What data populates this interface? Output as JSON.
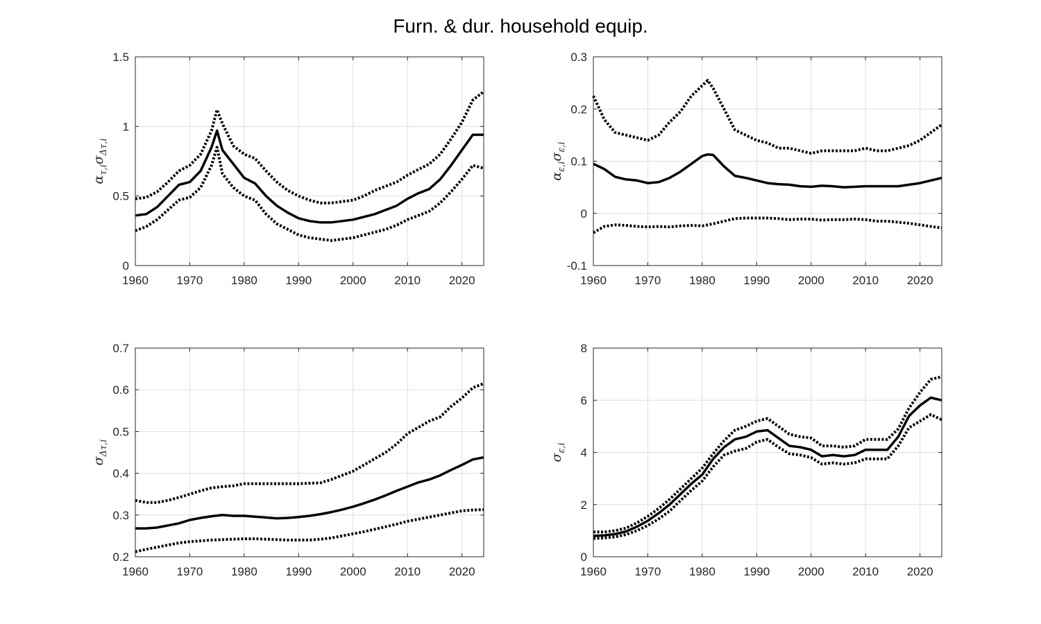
{
  "figure": {
    "title": "Furn. & dur. household equip."
  },
  "chart_data": [
    {
      "type": "line",
      "ylabel": {
        "base": "α",
        "base_sub": "τ,i",
        "mid": "σ",
        "mid_sub": "Δτ,i"
      },
      "xlim": [
        1960,
        2024
      ],
      "ylim": [
        0,
        1.5
      ],
      "xticks": [
        1960,
        1970,
        1980,
        1990,
        2000,
        2010,
        2020
      ],
      "yticks": [
        0,
        0.5,
        1,
        1.5
      ],
      "ytick_labels": [
        "0",
        "0.5",
        "1",
        "1.5"
      ],
      "grid": true,
      "series": [
        {
          "role": "upper",
          "style": "dotted",
          "x": [
            1960,
            1962,
            1964,
            1966,
            1968,
            1970,
            1972,
            1974,
            1975,
            1976,
            1978,
            1980,
            1982,
            1984,
            1986,
            1988,
            1990,
            1992,
            1994,
            1996,
            1998,
            2000,
            2002,
            2004,
            2006,
            2008,
            2010,
            2012,
            2014,
            2016,
            2018,
            2020,
            2022,
            2024
          ],
          "y": [
            0.48,
            0.49,
            0.53,
            0.6,
            0.68,
            0.72,
            0.8,
            0.97,
            1.12,
            1.02,
            0.86,
            0.8,
            0.77,
            0.68,
            0.6,
            0.54,
            0.5,
            0.47,
            0.45,
            0.45,
            0.46,
            0.47,
            0.5,
            0.54,
            0.57,
            0.6,
            0.65,
            0.69,
            0.73,
            0.8,
            0.91,
            1.03,
            1.19,
            1.25
          ]
        },
        {
          "role": "median",
          "style": "solid",
          "x": [
            1960,
            1962,
            1964,
            1966,
            1968,
            1970,
            1972,
            1974,
            1975,
            1976,
            1978,
            1980,
            1982,
            1984,
            1986,
            1988,
            1990,
            1992,
            1994,
            1996,
            1998,
            2000,
            2002,
            2004,
            2006,
            2008,
            2010,
            2012,
            2014,
            2016,
            2018,
            2020,
            2022,
            2024
          ],
          "y": [
            0.36,
            0.37,
            0.42,
            0.5,
            0.58,
            0.6,
            0.68,
            0.85,
            0.97,
            0.83,
            0.73,
            0.63,
            0.59,
            0.5,
            0.43,
            0.38,
            0.34,
            0.32,
            0.31,
            0.31,
            0.32,
            0.33,
            0.35,
            0.37,
            0.4,
            0.43,
            0.48,
            0.52,
            0.55,
            0.62,
            0.72,
            0.83,
            0.94,
            0.94
          ]
        },
        {
          "role": "lower",
          "style": "dotted",
          "x": [
            1960,
            1962,
            1964,
            1966,
            1968,
            1970,
            1972,
            1974,
            1975,
            1976,
            1978,
            1980,
            1982,
            1984,
            1986,
            1988,
            1990,
            1992,
            1994,
            1996,
            1998,
            2000,
            2002,
            2004,
            2006,
            2008,
            2010,
            2012,
            2014,
            2016,
            2018,
            2020,
            2022,
            2024
          ],
          "y": [
            0.25,
            0.28,
            0.33,
            0.4,
            0.47,
            0.49,
            0.56,
            0.72,
            0.85,
            0.66,
            0.56,
            0.5,
            0.47,
            0.37,
            0.3,
            0.26,
            0.22,
            0.2,
            0.19,
            0.18,
            0.19,
            0.2,
            0.22,
            0.24,
            0.26,
            0.29,
            0.33,
            0.36,
            0.39,
            0.45,
            0.53,
            0.62,
            0.72,
            0.7
          ]
        }
      ]
    },
    {
      "type": "line",
      "ylabel": {
        "base": "α",
        "base_sub": "ε,i",
        "mid": "σ",
        "mid_sub": "ε,i"
      },
      "xlim": [
        1960,
        2024
      ],
      "ylim": [
        -0.1,
        0.3
      ],
      "xticks": [
        1960,
        1970,
        1980,
        1990,
        2000,
        2010,
        2020
      ],
      "yticks": [
        -0.1,
        0,
        0.1,
        0.2,
        0.3
      ],
      "ytick_labels": [
        "-0.1",
        "0",
        "0.1",
        "0.2",
        "0.3"
      ],
      "grid": true,
      "series": [
        {
          "role": "upper",
          "style": "dotted",
          "x": [
            1960,
            1962,
            1964,
            1966,
            1968,
            1970,
            1972,
            1974,
            1976,
            1978,
            1980,
            1981,
            1982,
            1984,
            1986,
            1988,
            1990,
            1992,
            1994,
            1996,
            1998,
            2000,
            2002,
            2004,
            2006,
            2008,
            2010,
            2012,
            2014,
            2016,
            2018,
            2020,
            2022,
            2024
          ],
          "y": [
            0.225,
            0.18,
            0.155,
            0.15,
            0.145,
            0.14,
            0.15,
            0.175,
            0.195,
            0.225,
            0.245,
            0.255,
            0.24,
            0.2,
            0.16,
            0.15,
            0.14,
            0.135,
            0.125,
            0.125,
            0.12,
            0.115,
            0.12,
            0.12,
            0.12,
            0.12,
            0.125,
            0.12,
            0.12,
            0.125,
            0.13,
            0.14,
            0.155,
            0.17
          ]
        },
        {
          "role": "median",
          "style": "solid",
          "x": [
            1960,
            1962,
            1964,
            1966,
            1968,
            1970,
            1972,
            1974,
            1976,
            1978,
            1980,
            1981,
            1982,
            1984,
            1986,
            1988,
            1990,
            1992,
            1994,
            1996,
            1998,
            2000,
            2002,
            2004,
            2006,
            2008,
            2010,
            2012,
            2014,
            2016,
            2018,
            2020,
            2022,
            2024
          ],
          "y": [
            0.095,
            0.085,
            0.07,
            0.065,
            0.063,
            0.058,
            0.06,
            0.068,
            0.08,
            0.095,
            0.11,
            0.113,
            0.112,
            0.09,
            0.072,
            0.068,
            0.063,
            0.058,
            0.056,
            0.055,
            0.052,
            0.051,
            0.053,
            0.052,
            0.05,
            0.051,
            0.052,
            0.052,
            0.052,
            0.052,
            0.055,
            0.058,
            0.063,
            0.068
          ]
        },
        {
          "role": "lower",
          "style": "dotted",
          "x": [
            1960,
            1962,
            1964,
            1966,
            1968,
            1970,
            1972,
            1974,
            1976,
            1978,
            1980,
            1982,
            1984,
            1986,
            1988,
            1990,
            1992,
            1994,
            1996,
            1998,
            2000,
            2002,
            2004,
            2006,
            2008,
            2010,
            2012,
            2014,
            2016,
            2018,
            2020,
            2022,
            2024
          ],
          "y": [
            -0.037,
            -0.025,
            -0.022,
            -0.023,
            -0.025,
            -0.026,
            -0.025,
            -0.026,
            -0.024,
            -0.023,
            -0.024,
            -0.02,
            -0.015,
            -0.01,
            -0.009,
            -0.009,
            -0.009,
            -0.01,
            -0.012,
            -0.011,
            -0.011,
            -0.013,
            -0.012,
            -0.012,
            -0.011,
            -0.012,
            -0.015,
            -0.015,
            -0.017,
            -0.019,
            -0.022,
            -0.025,
            -0.028
          ]
        }
      ]
    },
    {
      "type": "line",
      "ylabel": {
        "base": "σ",
        "base_sub": "Δτ,i",
        "mid": "",
        "mid_sub": ""
      },
      "xlim": [
        1960,
        2024
      ],
      "ylim": [
        0.2,
        0.7
      ],
      "xticks": [
        1960,
        1970,
        1980,
        1990,
        2000,
        2010,
        2020
      ],
      "yticks": [
        0.2,
        0.3,
        0.4,
        0.5,
        0.6,
        0.7
      ],
      "ytick_labels": [
        "0.2",
        "0.3",
        "0.4",
        "0.5",
        "0.6",
        "0.7"
      ],
      "grid": true,
      "series": [
        {
          "role": "upper",
          "style": "dotted",
          "x": [
            1960,
            1962,
            1964,
            1966,
            1968,
            1970,
            1972,
            1974,
            1976,
            1978,
            1980,
            1982,
            1984,
            1986,
            1988,
            1990,
            1992,
            1994,
            1996,
            1998,
            2000,
            2002,
            2004,
            2006,
            2008,
            2010,
            2012,
            2014,
            2016,
            2018,
            2020,
            2022,
            2024
          ],
          "y": [
            0.335,
            0.33,
            0.33,
            0.335,
            0.342,
            0.35,
            0.358,
            0.365,
            0.368,
            0.37,
            0.375,
            0.375,
            0.375,
            0.375,
            0.375,
            0.375,
            0.376,
            0.377,
            0.385,
            0.395,
            0.405,
            0.42,
            0.435,
            0.45,
            0.47,
            0.495,
            0.51,
            0.525,
            0.535,
            0.56,
            0.58,
            0.605,
            0.615
          ]
        },
        {
          "role": "median",
          "style": "solid",
          "x": [
            1960,
            1962,
            1964,
            1966,
            1968,
            1970,
            1972,
            1974,
            1976,
            1978,
            1980,
            1982,
            1984,
            1986,
            1988,
            1990,
            1992,
            1994,
            1996,
            1998,
            2000,
            2002,
            2004,
            2006,
            2008,
            2010,
            2012,
            2014,
            2016,
            2018,
            2020,
            2022,
            2024
          ],
          "y": [
            0.268,
            0.268,
            0.27,
            0.275,
            0.28,
            0.288,
            0.293,
            0.297,
            0.3,
            0.298,
            0.298,
            0.296,
            0.294,
            0.292,
            0.293,
            0.295,
            0.298,
            0.302,
            0.307,
            0.313,
            0.32,
            0.328,
            0.337,
            0.347,
            0.358,
            0.368,
            0.378,
            0.385,
            0.395,
            0.408,
            0.42,
            0.433,
            0.438
          ]
        },
        {
          "role": "lower",
          "style": "dotted",
          "x": [
            1960,
            1962,
            1964,
            1966,
            1968,
            1970,
            1972,
            1974,
            1976,
            1978,
            1980,
            1982,
            1984,
            1986,
            1988,
            1990,
            1992,
            1994,
            1996,
            1998,
            2000,
            2002,
            2004,
            2006,
            2008,
            2010,
            2012,
            2014,
            2016,
            2018,
            2020,
            2022,
            2024
          ],
          "y": [
            0.212,
            0.218,
            0.223,
            0.228,
            0.233,
            0.236,
            0.238,
            0.24,
            0.241,
            0.242,
            0.243,
            0.243,
            0.242,
            0.241,
            0.24,
            0.24,
            0.24,
            0.242,
            0.245,
            0.25,
            0.255,
            0.26,
            0.266,
            0.272,
            0.278,
            0.285,
            0.29,
            0.295,
            0.3,
            0.305,
            0.31,
            0.312,
            0.313
          ]
        }
      ]
    },
    {
      "type": "line",
      "ylabel": {
        "base": "σ",
        "base_sub": "ε,i",
        "mid": "",
        "mid_sub": ""
      },
      "xlim": [
        1960,
        2024
      ],
      "ylim": [
        0,
        8
      ],
      "xticks": [
        1960,
        1970,
        1980,
        1990,
        2000,
        2010,
        2020
      ],
      "yticks": [
        0,
        2,
        4,
        6,
        8
      ],
      "ytick_labels": [
        "0",
        "2",
        "4",
        "6",
        "8"
      ],
      "grid": true,
      "series": [
        {
          "role": "upper",
          "style": "dotted",
          "x": [
            1960,
            1962,
            1964,
            1966,
            1968,
            1970,
            1972,
            1974,
            1976,
            1978,
            1980,
            1982,
            1984,
            1986,
            1988,
            1990,
            1992,
            1994,
            1996,
            1998,
            2000,
            2002,
            2004,
            2006,
            2008,
            2010,
            2012,
            2014,
            2016,
            2018,
            2020,
            2022,
            2024
          ],
          "y": [
            0.95,
            0.95,
            1.0,
            1.1,
            1.3,
            1.55,
            1.85,
            2.2,
            2.6,
            3.0,
            3.4,
            3.95,
            4.45,
            4.85,
            5.0,
            5.2,
            5.3,
            5.0,
            4.7,
            4.6,
            4.55,
            4.25,
            4.25,
            4.2,
            4.25,
            4.5,
            4.5,
            4.5,
            4.9,
            5.7,
            6.3,
            6.8,
            6.9
          ]
        },
        {
          "role": "median",
          "style": "solid",
          "x": [
            1960,
            1962,
            1964,
            1966,
            1968,
            1970,
            1972,
            1974,
            1976,
            1978,
            1980,
            1982,
            1984,
            1986,
            1988,
            1990,
            1992,
            1994,
            1996,
            1998,
            2000,
            2002,
            2004,
            2006,
            2008,
            2010,
            2012,
            2014,
            2016,
            2018,
            2020,
            2022,
            2024
          ],
          "y": [
            0.8,
            0.82,
            0.87,
            0.97,
            1.15,
            1.38,
            1.67,
            2.0,
            2.4,
            2.8,
            3.15,
            3.75,
            4.2,
            4.5,
            4.6,
            4.8,
            4.85,
            4.55,
            4.25,
            4.2,
            4.1,
            3.85,
            3.9,
            3.85,
            3.9,
            4.1,
            4.1,
            4.1,
            4.6,
            5.4,
            5.8,
            6.1,
            6.0
          ]
        },
        {
          "role": "lower",
          "style": "dotted",
          "x": [
            1960,
            1962,
            1964,
            1966,
            1968,
            1970,
            1972,
            1974,
            1976,
            1978,
            1980,
            1982,
            1984,
            1986,
            1988,
            1990,
            1992,
            1994,
            1996,
            1998,
            2000,
            2002,
            2004,
            2006,
            2008,
            2010,
            2012,
            2014,
            2016,
            2018,
            2020,
            2022,
            2024
          ],
          "y": [
            0.7,
            0.72,
            0.76,
            0.85,
            1.0,
            1.2,
            1.45,
            1.75,
            2.15,
            2.55,
            2.9,
            3.45,
            3.9,
            4.05,
            4.15,
            4.4,
            4.5,
            4.2,
            3.95,
            3.9,
            3.8,
            3.55,
            3.6,
            3.55,
            3.6,
            3.75,
            3.75,
            3.75,
            4.25,
            4.95,
            5.2,
            5.45,
            5.25
          ]
        }
      ]
    }
  ]
}
